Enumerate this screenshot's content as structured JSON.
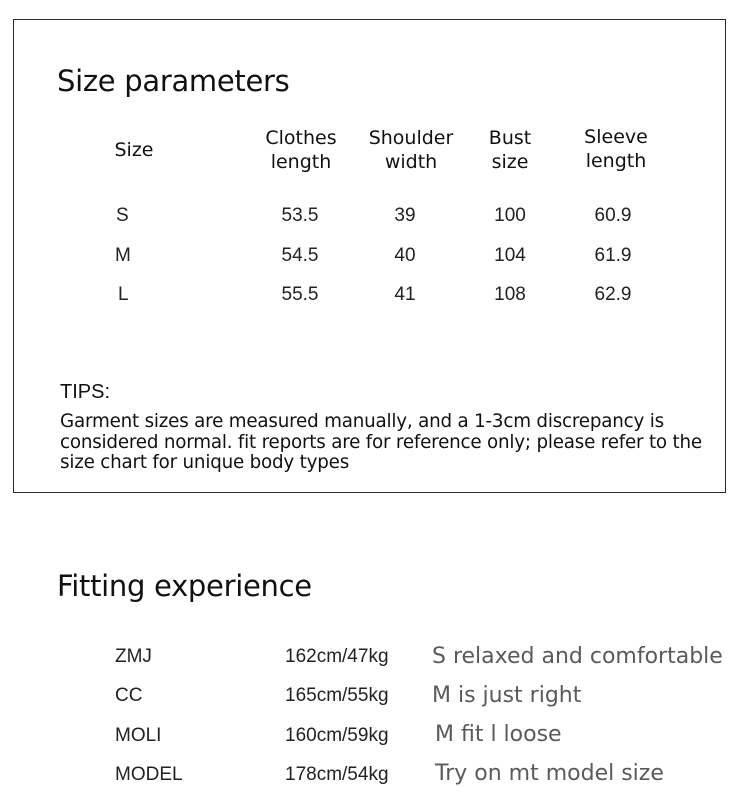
{
  "size_params": {
    "title": "Size parameters",
    "headers": [
      "Size",
      "Clothes\nlength",
      "Shoulder\nwidth",
      "Bust\nsize",
      "Sleeve\nlength"
    ],
    "rows": [
      [
        "S",
        "53.5",
        "39",
        "100",
        "60.9"
      ],
      [
        "M",
        "54.5",
        "40",
        "104",
        "61.9"
      ],
      [
        "L",
        "55.5",
        "41",
        "108",
        "62.9"
      ]
    ],
    "tips_label": "TIPS:",
    "tips_text": "Garment sizes are measured manually, and a 1-3cm discrepancy is considered normal. fit reports are for reference only; please refer to the size chart for unique body types"
  },
  "fitting": {
    "title": "Fitting experience",
    "rows": [
      {
        "name": "ZMJ",
        "hw": "162cm/47kg",
        "note": "S relaxed and comfortable"
      },
      {
        "name": "CC",
        "hw": "165cm/55kg",
        "note": "M is just right"
      },
      {
        "name": "MOLI",
        "hw": "160cm/59kg",
        "note": "M fit l loose"
      },
      {
        "name": "MODEL",
        "hw": "178cm/54kg",
        "note": "Try on mt model size"
      }
    ]
  }
}
